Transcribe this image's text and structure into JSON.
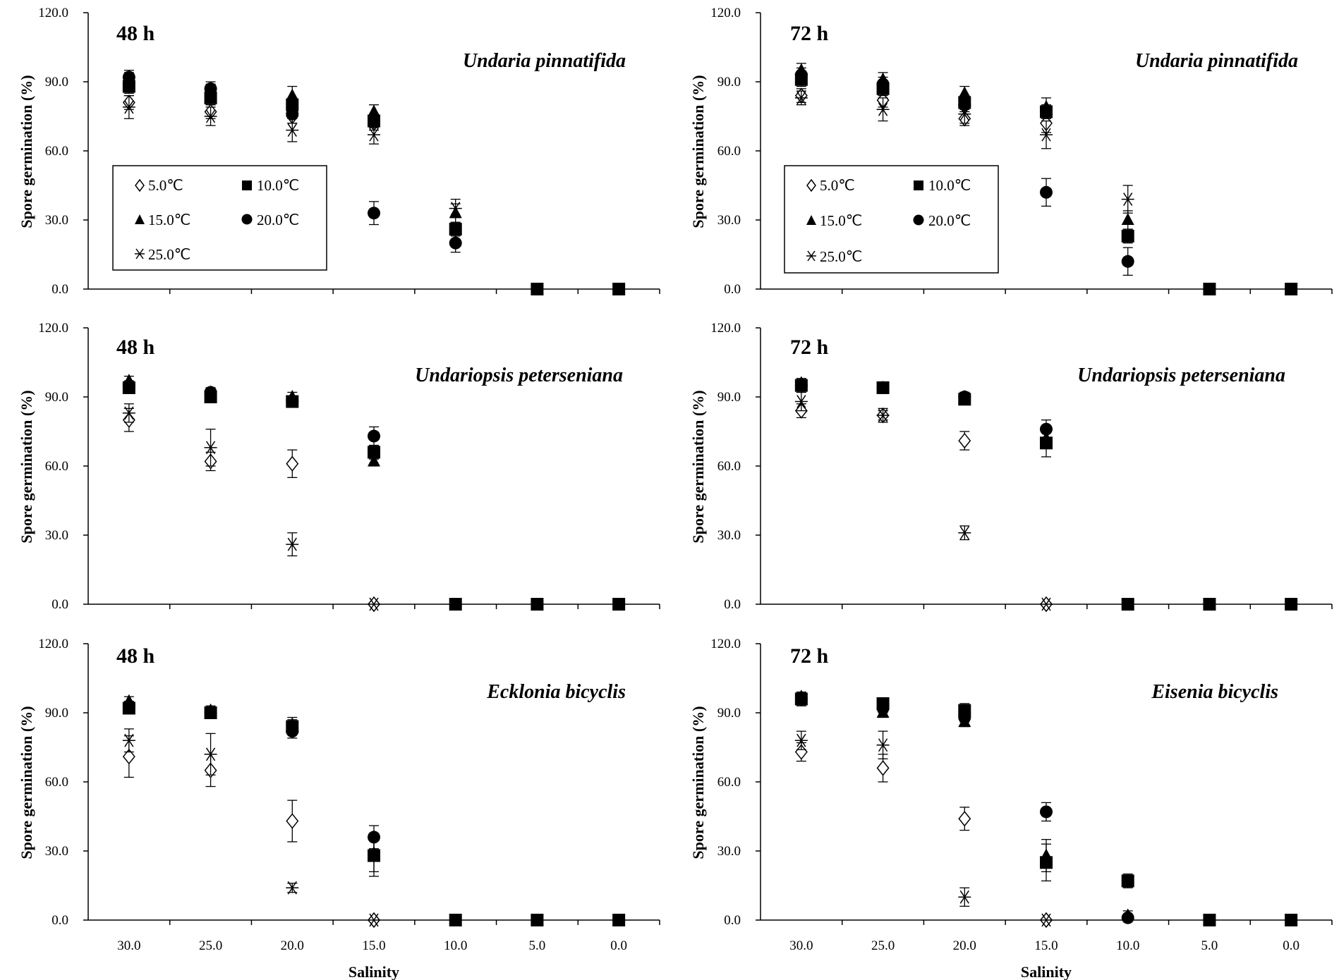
{
  "x_tick_labels": [
    "30.0",
    "25.0",
    "20.0",
    "15.0",
    "10.0",
    "5.0",
    "0.0"
  ],
  "y_tick_labels": [
    "0.0",
    "30.0",
    "60.0",
    "90.0",
    "120.0"
  ],
  "legend": {
    "t5": "5.0℃",
    "t10": "10.0℃",
    "t15": "15.0℃",
    "t20": "20.0℃",
    "t25": "25.0℃"
  },
  "colors": {
    "ink": "#000000",
    "background": "#ffffff"
  },
  "chart_data": [
    {
      "type": "scatter",
      "time": "48 h",
      "species": "Undaria pinnatifida",
      "xlabel": "",
      "ylabel": "Spore germination (%)",
      "ylim": [
        0,
        120
      ],
      "xlim": [
        30,
        0
      ],
      "categories": [
        "30.0",
        "25.0",
        "20.0",
        "15.0",
        "10.0",
        "5.0",
        "0.0"
      ],
      "series": [
        {
          "name": "5.0℃",
          "marker": "diamond-open",
          "values": [
            81,
            77,
            75,
            72,
            null,
            null,
            null
          ],
          "errors": [
            3,
            3,
            3,
            3,
            null,
            null,
            null
          ]
        },
        {
          "name": "10.0℃",
          "marker": "square",
          "values": [
            88,
            83,
            80,
            73,
            26,
            0,
            0
          ],
          "errors": [
            3,
            3,
            3,
            3,
            3,
            0,
            0
          ]
        },
        {
          "name": "15.0℃",
          "marker": "triangle",
          "values": [
            91,
            86,
            84,
            77,
            33,
            null,
            null
          ],
          "errors": [
            3,
            3,
            4,
            3,
            4,
            null,
            null
          ]
        },
        {
          "name": "20.0℃",
          "marker": "circle",
          "values": [
            92,
            87,
            76,
            33,
            20,
            null,
            null
          ],
          "errors": [
            3,
            3,
            4,
            5,
            4,
            null,
            null
          ]
        },
        {
          "name": "25.0℃",
          "marker": "star",
          "values": [
            79,
            75,
            69,
            67,
            35,
            null,
            null
          ],
          "errors": [
            5,
            4,
            5,
            4,
            4,
            null,
            null
          ]
        }
      ]
    },
    {
      "type": "scatter",
      "time": "72 h",
      "species": "Undaria pinnatifida",
      "xlabel": "",
      "ylabel": "Spore germination (%)",
      "ylim": [
        0,
        120
      ],
      "xlim": [
        30,
        0
      ],
      "categories": [
        "30.0",
        "25.0",
        "20.0",
        "15.0",
        "10.0",
        "5.0",
        "0.0"
      ],
      "series": [
        {
          "name": "5.0℃",
          "marker": "diamond-open",
          "values": [
            84,
            82,
            74,
            72,
            null,
            null,
            null
          ],
          "errors": [
            3,
            3,
            3,
            4,
            null,
            null,
            null
          ]
        },
        {
          "name": "10.0℃",
          "marker": "square",
          "values": [
            91,
            87,
            81,
            77,
            23,
            0,
            0
          ],
          "errors": [
            3,
            3,
            3,
            3,
            3,
            0,
            0
          ]
        },
        {
          "name": "15.0℃",
          "marker": "triangle",
          "values": [
            95,
            91,
            85,
            79,
            30,
            null,
            null
          ],
          "errors": [
            3,
            3,
            3,
            4,
            4,
            null,
            null
          ]
        },
        {
          "name": "20.0℃",
          "marker": "circle",
          "values": [
            93,
            89,
            80,
            42,
            12,
            null,
            null
          ],
          "errors": [
            3,
            3,
            3,
            6,
            6,
            null,
            null
          ]
        },
        {
          "name": "25.0℃",
          "marker": "star",
          "values": [
            83,
            78,
            76,
            67,
            39,
            null,
            null
          ],
          "errors": [
            3,
            5,
            4,
            6,
            6,
            null,
            null
          ]
        }
      ]
    },
    {
      "type": "scatter",
      "time": "48 h",
      "species": "Undariopsis peterseniana",
      "xlabel": "",
      "ylabel": "Spore germination (%)",
      "ylim": [
        0,
        120
      ],
      "xlim": [
        30,
        0
      ],
      "categories": [
        "30.0",
        "25.0",
        "20.0",
        "15.0",
        "10.0",
        "5.0",
        "0.0"
      ],
      "series": [
        {
          "name": "5.0℃",
          "marker": "diamond-open",
          "values": [
            80,
            62,
            61,
            0,
            null,
            null,
            null
          ],
          "errors": [
            5,
            4,
            6,
            0,
            null,
            null,
            null
          ]
        },
        {
          "name": "10.0℃",
          "marker": "square",
          "values": [
            94,
            90,
            88,
            66,
            0,
            0,
            0
          ],
          "errors": [
            2,
            2,
            2,
            3,
            0,
            0,
            0
          ]
        },
        {
          "name": "15.0℃",
          "marker": "triangle",
          "values": [
            97,
            92,
            90,
            62,
            null,
            null,
            null
          ],
          "errors": [
            2,
            2,
            2,
            2,
            null,
            null,
            null
          ]
        },
        {
          "name": "20.0℃",
          "marker": "circle",
          "values": [
            95,
            92,
            88,
            73,
            null,
            null,
            null
          ],
          "errors": [
            2,
            2,
            2,
            4,
            null,
            null,
            null
          ]
        },
        {
          "name": "25.0℃",
          "marker": "star",
          "values": [
            83,
            68,
            26,
            0,
            null,
            null,
            null
          ],
          "errors": [
            4,
            8,
            5,
            0,
            null,
            null,
            null
          ]
        }
      ]
    },
    {
      "type": "scatter",
      "time": "72 h",
      "species": "Undariopsis peterseniana",
      "xlabel": "",
      "ylabel": "Spore germination (%)",
      "ylim": [
        0,
        120
      ],
      "xlim": [
        30,
        0
      ],
      "categories": [
        "30.0",
        "25.0",
        "20.0",
        "15.0",
        "10.0",
        "5.0",
        "0.0"
      ],
      "series": [
        {
          "name": "5.0℃",
          "marker": "diamond-open",
          "values": [
            84,
            82,
            71,
            0,
            null,
            null,
            null
          ],
          "errors": [
            3,
            2,
            4,
            0,
            null,
            null,
            null
          ]
        },
        {
          "name": "10.0℃",
          "marker": "square",
          "values": [
            95,
            94,
            89,
            70,
            0,
            0,
            0
          ],
          "errors": [
            3,
            2,
            2,
            6,
            0,
            0,
            0
          ]
        },
        {
          "name": "15.0℃",
          "marker": "triangle",
          "values": [
            96,
            94,
            90,
            72,
            null,
            null,
            null
          ],
          "errors": [
            2,
            2,
            2,
            4,
            null,
            null,
            null
          ]
        },
        {
          "name": "20.0℃",
          "marker": "circle",
          "values": [
            95,
            94,
            90,
            76,
            null,
            null,
            null
          ],
          "errors": [
            2,
            2,
            2,
            4,
            null,
            null,
            null
          ]
        },
        {
          "name": "25.0℃",
          "marker": "star",
          "values": [
            88,
            82,
            31,
            0,
            null,
            null,
            null
          ],
          "errors": [
            4,
            3,
            3,
            0,
            null,
            null,
            null
          ]
        }
      ]
    },
    {
      "type": "scatter",
      "time": "48 h",
      "species": "Ecklonia bicyclis",
      "xlabel": "Salinity",
      "ylabel": "Spore germination (%)",
      "ylim": [
        0,
        120
      ],
      "xlim": [
        30,
        0
      ],
      "categories": [
        "30.0",
        "25.0",
        "20.0",
        "15.0",
        "10.0",
        "5.0",
        "0.0"
      ],
      "series": [
        {
          "name": "5.0℃",
          "marker": "diamond-open",
          "values": [
            71,
            65,
            43,
            0,
            null,
            null,
            null
          ],
          "errors": [
            9,
            7,
            9,
            0,
            null,
            null,
            null
          ]
        },
        {
          "name": "10.0℃",
          "marker": "square",
          "values": [
            92,
            90,
            84,
            28,
            0,
            0,
            0
          ],
          "errors": [
            2,
            2,
            3,
            9,
            0,
            0,
            0
          ]
        },
        {
          "name": "15.0℃",
          "marker": "triangle",
          "values": [
            95,
            91,
            85,
            29,
            null,
            null,
            null
          ],
          "errors": [
            2,
            2,
            3,
            8,
            null,
            null,
            null
          ]
        },
        {
          "name": "20.0℃",
          "marker": "circle",
          "values": [
            93,
            90,
            82,
            36,
            null,
            null,
            null
          ],
          "errors": [
            2,
            2,
            3,
            5,
            null,
            null,
            null
          ]
        },
        {
          "name": "25.0℃",
          "marker": "star",
          "values": [
            78,
            72,
            14,
            0,
            null,
            null,
            null
          ],
          "errors": [
            5,
            9,
            2,
            0,
            null,
            null,
            null
          ]
        }
      ]
    },
    {
      "type": "scatter",
      "time": "72 h",
      "species": "Eisenia bicyclis",
      "xlabel": "Salinity",
      "ylabel": "Spore germination (%)",
      "ylim": [
        0,
        120
      ],
      "xlim": [
        30,
        0
      ],
      "categories": [
        "30.0",
        "25.0",
        "20.0",
        "15.0",
        "10.0",
        "5.0",
        "0.0"
      ],
      "series": [
        {
          "name": "5.0℃",
          "marker": "diamond-open",
          "values": [
            73,
            66,
            44,
            0,
            null,
            null,
            null
          ],
          "errors": [
            4,
            6,
            5,
            0,
            null,
            null,
            null
          ]
        },
        {
          "name": "10.0℃",
          "marker": "square",
          "values": [
            96,
            94,
            91,
            25,
            17,
            0,
            0
          ],
          "errors": [
            3,
            2,
            3,
            8,
            3,
            0,
            0
          ]
        },
        {
          "name": "15.0℃",
          "marker": "triangle",
          "values": [
            97,
            90,
            86,
            28,
            2,
            null,
            null
          ],
          "errors": [
            2,
            2,
            2,
            7,
            2,
            null,
            null
          ]
        },
        {
          "name": "20.0℃",
          "marker": "circle",
          "values": [
            96,
            92,
            88,
            47,
            1,
            null,
            null
          ],
          "errors": [
            2,
            2,
            2,
            4,
            1,
            null,
            null
          ]
        },
        {
          "name": "25.0℃",
          "marker": "star",
          "values": [
            78,
            76,
            10,
            0,
            null,
            null,
            null
          ],
          "errors": [
            4,
            6,
            4,
            0,
            null,
            null,
            null
          ]
        }
      ]
    }
  ]
}
